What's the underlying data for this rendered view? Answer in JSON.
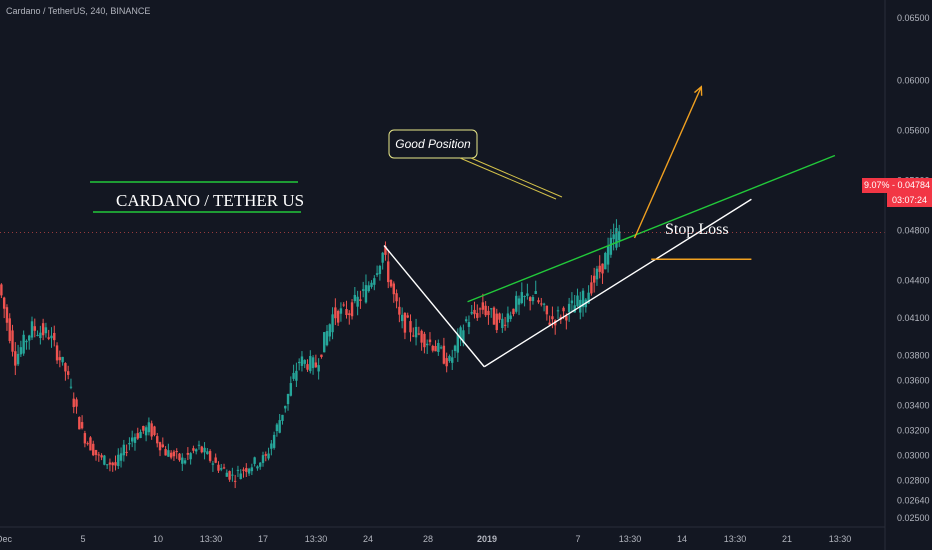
{
  "header": {
    "title": "Cardano / TetherUS, 240, BINANCE"
  },
  "annotations": {
    "main_label": "CARDANO / TETHER US",
    "callout": "Good Position",
    "stop_loss": "Stop Loss"
  },
  "last_price": {
    "change": "9.07%",
    "value": "0.04784",
    "countdown": "03:07:24"
  },
  "colors": {
    "background": "#131722",
    "up": "#26a69a",
    "down": "#ef5350",
    "accent_green": "#22c93a",
    "accent_orange": "#f0a020",
    "white_line": "#ffffff",
    "badge": "#f23645"
  },
  "chart_data": {
    "type": "candlestick",
    "title": "Cardano / TetherUS, 240, BINANCE",
    "y_ticks": [
      "0.06500",
      "0.06000",
      "0.05600",
      "0.05200",
      "0.04800",
      "0.04400",
      "0.04100",
      "0.03800",
      "0.03600",
      "0.03400",
      "0.03200",
      "0.03000",
      "0.02800",
      "0.02640",
      "0.02500"
    ],
    "x_ticks": [
      "Dec",
      "5",
      "10",
      "13:30",
      "17",
      "13:30",
      "24",
      "28",
      "2019",
      "7",
      "13:30",
      "14",
      "13:30",
      "21",
      "13:30"
    ],
    "ylim": [
      0.025,
      0.065
    ],
    "xlim": [
      "2018-12-01",
      "2019-01-23"
    ],
    "grid": false,
    "price_path": [
      [
        "2018-12-01",
        0.0437
      ],
      [
        "2018-12-02",
        0.0378
      ],
      [
        "2018-12-03",
        0.0402
      ],
      [
        "2018-12-04",
        0.0397
      ],
      [
        "2018-12-05",
        0.0368
      ],
      [
        "2018-12-06",
        0.0318
      ],
      [
        "2018-12-07",
        0.0298
      ],
      [
        "2018-12-08",
        0.0292
      ],
      [
        "2018-12-09",
        0.0315
      ],
      [
        "2018-12-10",
        0.0322
      ],
      [
        "2018-12-11",
        0.0303
      ],
      [
        "2018-12-12",
        0.0296
      ],
      [
        "2018-12-13",
        0.0306
      ],
      [
        "2018-12-14",
        0.0293
      ],
      [
        "2018-12-15",
        0.0283
      ],
      [
        "2018-12-16",
        0.0292
      ],
      [
        "2018-12-17",
        0.0298
      ],
      [
        "2018-12-18",
        0.0335
      ],
      [
        "2018-12-19",
        0.0376
      ],
      [
        "2018-12-20",
        0.0372
      ],
      [
        "2018-12-21",
        0.0412
      ],
      [
        "2018-12-22",
        0.0416
      ],
      [
        "2018-12-23",
        0.0432
      ],
      [
        "2018-12-24",
        0.0462
      ],
      [
        "2018-12-25",
        0.0409
      ],
      [
        "2018-12-26",
        0.0398
      ],
      [
        "2018-12-27",
        0.0389
      ],
      [
        "2018-12-28",
        0.0374
      ],
      [
        "2018-12-29",
        0.0408
      ],
      [
        "2018-12-30",
        0.0418
      ],
      [
        "2018-12-31",
        0.0405
      ],
      [
        "2019-01-01",
        0.0421
      ],
      [
        "2019-01-02",
        0.0429
      ],
      [
        "2019-01-03",
        0.0408
      ],
      [
        "2019-01-04",
        0.0415
      ],
      [
        "2019-01-05",
        0.0425
      ],
      [
        "2019-01-06",
        0.0448
      ],
      [
        "2019-01-07",
        0.0478
      ]
    ],
    "trendlines": [
      {
        "name": "resistance",
        "color": "green",
        "from": [
          "2018-12-29",
          0.0423
        ],
        "to": [
          "2019-01-20",
          0.054
        ]
      },
      {
        "name": "wedge-upper",
        "color": "white",
        "from": [
          "2018-12-24",
          0.0468
        ],
        "to": [
          "2018-12-30",
          0.0371
        ]
      },
      {
        "name": "wedge-lower",
        "color": "white",
        "from": [
          "2018-12-30",
          0.0371
        ],
        "to": [
          "2019-01-15",
          0.0505
        ]
      },
      {
        "name": "projection",
        "color": "orange",
        "from": [
          "2019-01-08",
          0.0474
        ],
        "to": [
          "2019-01-12",
          0.0595
        ]
      },
      {
        "name": "stop-loss",
        "color": "orange",
        "from": [
          "2019-01-09",
          0.0457
        ],
        "to": [
          "2019-01-15",
          0.0457
        ]
      }
    ]
  }
}
